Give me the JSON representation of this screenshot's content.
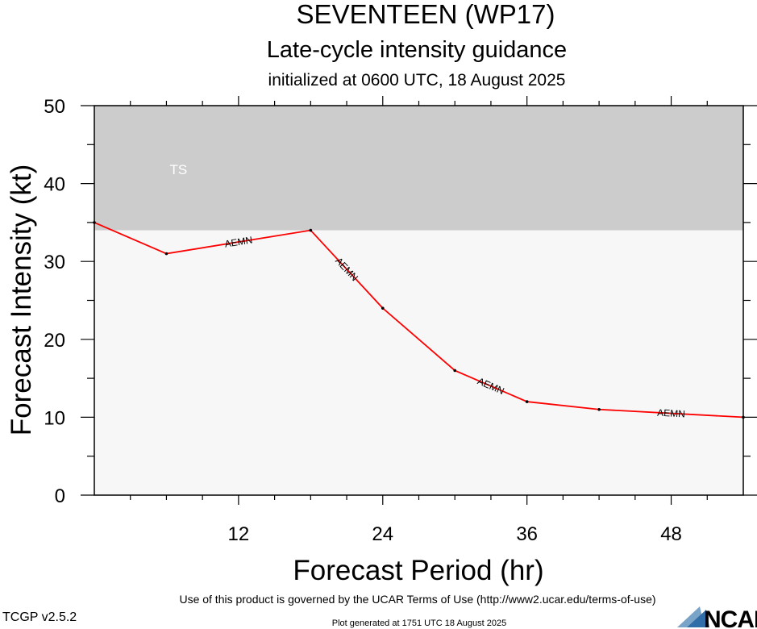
{
  "header": {
    "title": "SEVENTEEN (WP17)",
    "subtitle": "Late-cycle intensity guidance",
    "init_line": "initialized at 0600 UTC, 18 August 2025"
  },
  "chart_data": {
    "type": "line",
    "xlabel": "Forecast Period (hr)",
    "ylabel": "Forecast Intensity (kt)",
    "xlim": [
      0,
      54
    ],
    "ylim": [
      0,
      50
    ],
    "x_ticks": [
      12,
      24,
      36,
      48
    ],
    "y_ticks": [
      0,
      10,
      20,
      30,
      40,
      50
    ],
    "grid": false,
    "bands": [
      {
        "label": "TS",
        "from": 34,
        "to": 50,
        "color": "#cccccc"
      }
    ],
    "below_band_color": "#f7f7f7",
    "series": [
      {
        "name": "AEMN",
        "color": "#ff0000",
        "x": [
          0,
          6,
          18,
          24,
          30,
          36,
          42,
          54
        ],
        "y": [
          35,
          31,
          34,
          24,
          16,
          12,
          11,
          10
        ]
      }
    ]
  },
  "footer": {
    "terms": "Use of this product is governed by the UCAR Terms of Use (http://www2.ucar.edu/terms-of-use)",
    "version": "TCGP v2.5.2",
    "generated": "Plot generated at 1751 UTC   18 August 2025",
    "logo_text": "NCAR"
  }
}
